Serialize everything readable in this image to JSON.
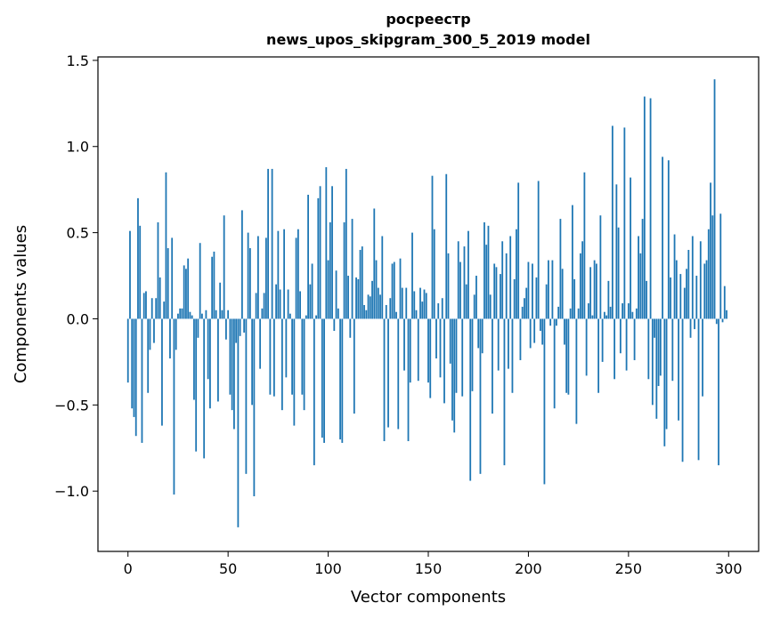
{
  "chart_data": {
    "type": "bar",
    "title": "росреестр",
    "subtitle": "news_upos_skipgram_300_5_2019 model",
    "xlabel": "Vector components",
    "ylabel": "Components values",
    "xlim": [
      -15,
      315
    ],
    "ylim": [
      -1.35,
      1.52
    ],
    "xticks": [
      0,
      50,
      100,
      150,
      200,
      250,
      300
    ],
    "xtick_labels": [
      "0",
      "50",
      "100",
      "150",
      "200",
      "250",
      "300"
    ],
    "yticks": [
      -1.0,
      -0.5,
      0.0,
      0.5,
      1.0,
      1.5
    ],
    "ytick_labels": [
      "−1.0",
      "−0.5",
      "0.0",
      "0.5",
      "1.0",
      "1.5"
    ],
    "grid": false,
    "bar_color": "#1f77b4",
    "x": "0..299",
    "values": [
      -0.37,
      0.51,
      -0.52,
      -0.57,
      -0.68,
      0.7,
      0.54,
      -0.72,
      0.15,
      0.16,
      -0.43,
      -0.18,
      0.12,
      -0.14,
      0.12,
      0.56,
      0.24,
      -0.62,
      0.1,
      0.85,
      0.41,
      -0.23,
      0.47,
      -1.02,
      -0.18,
      0.03,
      0.06,
      0.06,
      0.31,
      0.29,
      0.35,
      0.04,
      0.02,
      -0.47,
      -0.77,
      -0.11,
      0.44,
      0.03,
      -0.81,
      0.05,
      -0.35,
      -0.52,
      0.36,
      0.39,
      0.05,
      -0.48,
      0.21,
      0.05,
      0.6,
      -0.12,
      0.05,
      -0.44,
      -0.53,
      -0.64,
      -0.14,
      -1.21,
      -0.1,
      0.63,
      -0.08,
      -0.9,
      0.5,
      0.41,
      -0.5,
      -1.03,
      0.15,
      0.48,
      -0.29,
      0.06,
      0.15,
      0.47,
      0.87,
      -0.44,
      0.87,
      -0.45,
      0.2,
      0.51,
      0.17,
      -0.53,
      0.52,
      -0.34,
      0.17,
      0.03,
      -0.44,
      -0.62,
      0.47,
      0.52,
      0.16,
      -0.44,
      -0.53,
      0.02,
      0.72,
      0.2,
      0.32,
      -0.85,
      0.02,
      0.7,
      0.77,
      -0.69,
      -0.72,
      0.88,
      0.34,
      0.56,
      0.77,
      -0.07,
      0.28,
      0.06,
      -0.7,
      -0.72,
      0.56,
      0.87,
      0.25,
      -0.11,
      0.58,
      -0.55,
      0.24,
      0.23,
      0.4,
      0.42,
      0.08,
      0.05,
      0.14,
      0.13,
      0.22,
      0.64,
      0.34,
      0.18,
      0.14,
      0.48,
      -0.71,
      0.08,
      -0.63,
      0.12,
      0.32,
      0.33,
      0.04,
      -0.64,
      0.35,
      0.18,
      -0.3,
      0.18,
      -0.71,
      -0.37,
      0.5,
      0.16,
      0.05,
      -0.36,
      0.18,
      0.1,
      0.17,
      0.15,
      -0.37,
      -0.46,
      0.83,
      0.52,
      -0.23,
      0.09,
      -0.34,
      0.12,
      -0.49,
      0.84,
      0.38,
      -0.26,
      -0.59,
      -0.66,
      -0.43,
      0.45,
      0.33,
      -0.45,
      0.42,
      0.2,
      0.51,
      -0.94,
      -0.42,
      0.14,
      0.25,
      -0.17,
      -0.9,
      -0.2,
      0.56,
      0.43,
      0.54,
      0.14,
      -0.55,
      0.32,
      0.3,
      -0.3,
      0.26,
      0.45,
      -0.85,
      0.38,
      -0.29,
      0.48,
      -0.43,
      0.23,
      0.52,
      0.79,
      -0.24,
      0.07,
      0.12,
      0.18
    ],
    "values_200_299": [
      0.33,
      -0.17,
      0.32,
      -0.14,
      0.24,
      0.8,
      -0.07,
      -0.15,
      -0.96,
      0.2,
      0.34,
      -0.04,
      0.34,
      -0.52,
      -0.04,
      0.07,
      0.58,
      0.29,
      -0.15,
      -0.43,
      -0.44,
      0.06,
      0.66,
      0.23,
      -0.61,
      0.06,
      0.38,
      0.45,
      0.85,
      -0.33,
      0.09,
      0.3,
      0.02,
      0.34,
      0.32,
      -0.43,
      0.6,
      -0.25,
      0.04,
      0.02,
      0.22,
      0.07,
      1.12,
      -0.35,
      0.78,
      0.53,
      -0.2,
      0.09,
      1.11,
      -0.3,
      0.09,
      0.82,
      0.04,
      -0.24,
      0.06,
      0.48,
      0.38,
      0.58,
      1.29,
      0.22,
      -0.35,
      1.28,
      -0.5,
      -0.11,
      -0.58,
      -0.39,
      -0.33,
      0.94,
      -0.74,
      -0.64,
      0.92,
      0.24,
      -0.36,
      0.49,
      0.34,
      -0.59,
      0.26,
      -0.83,
      0.18,
      0.29,
      0.4,
      -0.11,
      0.48,
      -0.06,
      0.25,
      -0.82,
      0.45,
      -0.45,
      0.32,
      0.34,
      0.52,
      0.79,
      0.6,
      1.39,
      -0.03,
      -0.85,
      0.61,
      -0.02,
      0.19,
      0.05
    ]
  }
}
